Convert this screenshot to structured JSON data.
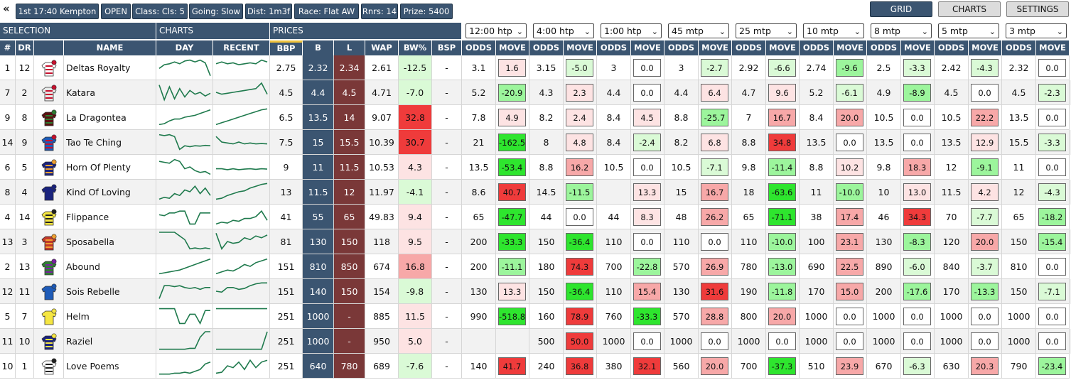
{
  "topbar": {
    "chips": [
      "1st 17:40 Kempton",
      "OPEN",
      "Class: Cls: 5",
      "Going: Slow",
      "Dist: 1m3f",
      "Race: Flat AW",
      "Rnrs: 14",
      "Prize: 5400"
    ],
    "views": {
      "grid": "GRID",
      "charts": "CHARTS",
      "settings": "SETTINGS"
    }
  },
  "groups": {
    "selection": "SELECTION",
    "charts": "CHARTS",
    "prices": "PRICES"
  },
  "timepoints": [
    "12:00 htp",
    "4:00 htp",
    "1:00 htp",
    "45 mtp",
    "25 mtp",
    "10 mtp",
    "8 mtp",
    "5 mtp",
    "3 mtp"
  ],
  "columns": {
    "num": "#",
    "dr": "DR",
    "name": "NAME",
    "day": "DAY",
    "recent": "RECENT",
    "bbp": "BBP",
    "b": "B",
    "l": "L",
    "wap": "WAP",
    "bwp": "BW%",
    "bsp": "BSP",
    "odds": "ODDS",
    "move": "MOVE"
  },
  "runners": [
    {
      "num": "1",
      "dr": "12",
      "name": "Deltas Royalty",
      "silk": [
        "#ffffff",
        "#c8102e"
      ],
      "bbp": "2.75",
      "b": "2.32",
      "l": "2.34",
      "wap": "2.61",
      "bwp": "-12.5",
      "bsp": "-",
      "tp": [
        [
          "3.1",
          "1.6"
        ],
        [
          "3.15",
          "-5.0"
        ],
        [
          "3",
          "0.0"
        ],
        [
          "3",
          "-2.7"
        ],
        [
          "2.92",
          "-6.6"
        ],
        [
          "2.74",
          "-9.6"
        ],
        [
          "2.5",
          "-3.3"
        ],
        [
          "2.42",
          "-4.3"
        ],
        [
          "2.32",
          "0.0"
        ]
      ],
      "day": [
        0.55,
        0.35,
        0.3,
        0.2,
        0.3,
        0.15,
        0.1,
        0.2,
        0.1,
        0.25,
        0.95
      ],
      "recent": [
        0.3,
        0.2,
        0.3,
        0.25,
        0.35,
        0.3,
        0.25,
        0.3,
        0.1,
        0.2
      ]
    },
    {
      "num": "7",
      "dr": "2",
      "name": "Katara",
      "silk": [
        "#e6e6e6",
        "#c8102e"
      ],
      "bbp": "4.5",
      "b": "4.4",
      "l": "4.5",
      "wap": "4.71",
      "bwp": "-7.0",
      "bsp": "-",
      "tp": [
        [
          "5.2",
          "-20.9"
        ],
        [
          "4.3",
          "2.3"
        ],
        [
          "4.4",
          "0.0"
        ],
        [
          "4.4",
          "6.4"
        ],
        [
          "4.7",
          "9.6"
        ],
        [
          "5.2",
          "-6.1"
        ],
        [
          "4.9",
          "-8.9"
        ],
        [
          "4.5",
          "0.0"
        ],
        [
          "4.5",
          "-2.3"
        ]
      ],
      "day": [
        0.1,
        0.9,
        0.2,
        0.85,
        0.3,
        0.75,
        0.4,
        0.6,
        0.5,
        0.7,
        0.55
      ],
      "recent": [
        0.5,
        0.6,
        0.55,
        0.5,
        0.45,
        0.4,
        0.35,
        0.3,
        0.0,
        0.6
      ]
    },
    {
      "num": "9",
      "dr": "8",
      "name": "La Dragontea",
      "silk": [
        "#5a1010",
        "#2e7d32"
      ],
      "bbp": "6.5",
      "b": "13.5",
      "l": "14",
      "wap": "9.07",
      "bwp": "32.8",
      "bsp": "-",
      "tp": [
        [
          "7.8",
          "4.9"
        ],
        [
          "8.2",
          "2.4"
        ],
        [
          "8.4",
          "4.5"
        ],
        [
          "8.8",
          "-25.7"
        ],
        [
          "7",
          "16.7"
        ],
        [
          "8.4",
          "20.0"
        ],
        [
          "10.5",
          "0.0"
        ],
        [
          "10.5",
          "22.2"
        ],
        [
          "13.5",
          "0.0"
        ]
      ],
      "day": [
        0.9,
        0.85,
        0.7,
        0.6,
        0.6,
        0.5,
        0.45,
        0.4,
        0.3,
        0.2,
        0.1
      ],
      "recent": [
        0.9,
        0.8,
        0.7,
        0.6,
        0.5,
        0.4,
        0.3,
        0.2,
        0.1,
        0.05
      ]
    },
    {
      "num": "14",
      "dr": "9",
      "name": "Tao Te Ching",
      "silk": [
        "#1e5bb8",
        "#c8102e"
      ],
      "bbp": "7.5",
      "b": "15",
      "l": "15.5",
      "wap": "10.39",
      "bwp": "30.7",
      "bsp": "-",
      "tp": [
        [
          "21",
          "-162.5"
        ],
        [
          "8",
          "4.8"
        ],
        [
          "8.4",
          "-2.4"
        ],
        [
          "8.2",
          "6.8"
        ],
        [
          "8.8",
          "34.8"
        ],
        [
          "13.5",
          "0.0"
        ],
        [
          "13.5",
          "0.0"
        ],
        [
          "13.5",
          "12.9"
        ],
        [
          "15.5",
          "-3.3"
        ]
      ],
      "day": [
        0.1,
        0.15,
        0.1,
        0.2,
        0.9,
        0.7,
        0.75,
        0.7,
        0.72,
        0.68,
        0.7
      ],
      "recent": [
        0.2,
        0.5,
        0.55,
        0.6,
        0.5,
        0.6,
        0.55,
        0.6,
        0.58,
        0.6
      ]
    },
    {
      "num": "6",
      "dr": "5",
      "name": "Horn Of Plenty",
      "silk": [
        "#1a237e",
        "#f0a030"
      ],
      "bbp": "9",
      "b": "11",
      "l": "11.5",
      "wap": "10.53",
      "bwp": "4.3",
      "bsp": "-",
      "tp": [
        [
          "13.5",
          "-53.4"
        ],
        [
          "8.8",
          "16.2"
        ],
        [
          "10.5",
          "0.0"
        ],
        [
          "10.5",
          "-7.1"
        ],
        [
          "9.8",
          "-11.4"
        ],
        [
          "8.8",
          "10.2"
        ],
        [
          "9.8",
          "18.3"
        ],
        [
          "12",
          "-9.1"
        ],
        [
          "11",
          "0.0"
        ]
      ],
      "day": [
        0.2,
        0.25,
        0.3,
        0.1,
        0.2,
        0.6,
        0.5,
        0.7,
        0.8,
        0.75,
        0.9
      ],
      "recent": [
        0.6,
        0.6,
        0.65,
        0.6,
        0.65,
        0.62,
        0.6,
        0.63,
        0.6,
        0.62
      ]
    },
    {
      "num": "8",
      "dr": "4",
      "name": "Kind Of Loving",
      "silk": [
        "#1a237e",
        "#1a237e"
      ],
      "bbp": "13",
      "b": "11.5",
      "l": "12",
      "wap": "11.97",
      "bwp": "-4.1",
      "bsp": "-",
      "tp": [
        [
          "8.6",
          "40.7"
        ],
        [
          "14.5",
          "-11.5"
        ],
        [
          "",
          "13.3"
        ],
        [
          "15",
          "16.7"
        ],
        [
          "18",
          "-63.6"
        ],
        [
          "11",
          "-10.0"
        ],
        [
          "10",
          "13.0"
        ],
        [
          "11.5",
          "4.2"
        ],
        [
          "12",
          "-4.3"
        ]
      ],
      "day": [
        0.9,
        0.8,
        0.85,
        0.6,
        0.7,
        0.4,
        0.5,
        0.2,
        0.6,
        0.3,
        0.7
      ],
      "recent": [
        0.9,
        0.85,
        0.7,
        0.6,
        0.5,
        0.45,
        0.3,
        0.2,
        0.1,
        0.05
      ]
    },
    {
      "num": "4",
      "dr": "14",
      "name": "Flippance",
      "silk": [
        "#f5e642",
        "#222222"
      ],
      "bbp": "41",
      "b": "55",
      "l": "65",
      "wap": "49.83",
      "bwp": "9.4",
      "bsp": "-",
      "tp": [
        [
          "65",
          "-47.7"
        ],
        [
          "44",
          "0.0"
        ],
        [
          "44",
          "8.3"
        ],
        [
          "48",
          "26.2"
        ],
        [
          "65",
          "-71.1"
        ],
        [
          "38",
          "17.4"
        ],
        [
          "46",
          "34.3"
        ],
        [
          "70",
          "-7.7"
        ],
        [
          "65",
          "-18.2"
        ]
      ],
      "day": [
        0.4,
        0.45,
        0.3,
        0.3,
        0.2,
        0.2,
        0.9,
        0.9,
        0.3,
        0.3,
        0.3
      ],
      "recent": [
        0.9,
        0.8,
        0.85,
        0.7,
        0.75,
        0.6,
        0.6,
        0.5,
        0.2,
        0.7
      ]
    },
    {
      "num": "13",
      "dr": "3",
      "name": "Sposabella",
      "silk": [
        "#c0392b",
        "#f0a030"
      ],
      "bbp": "81",
      "b": "130",
      "l": "150",
      "wap": "118",
      "bwp": "9.5",
      "bsp": "-",
      "tp": [
        [
          "200",
          "-33.3"
        ],
        [
          "150",
          "-36.4"
        ],
        [
          "110",
          "0.0"
        ],
        [
          "110",
          "0.0"
        ],
        [
          "110",
          "-10.0"
        ],
        [
          "100",
          "23.1"
        ],
        [
          "130",
          "-8.3"
        ],
        [
          "120",
          "20.0"
        ],
        [
          "150",
          "-15.4"
        ]
      ],
      "day": [
        0.0,
        0.0,
        0.0,
        0.0,
        0.2,
        0.4,
        0.9,
        0.85,
        0.9,
        0.85,
        0.9
      ],
      "recent": [
        0.05,
        0.9,
        0.5,
        0.6,
        0.55,
        0.3,
        0.4,
        0.2,
        0.3,
        0.15
      ]
    },
    {
      "num": "2",
      "dr": "13",
      "name": "Abound",
      "silk": [
        "#2e7d32",
        "#7b1fa2"
      ],
      "bbp": "151",
      "b": "810",
      "l": "850",
      "wap": "674",
      "bwp": "16.8",
      "bsp": "-",
      "tp": [
        [
          "200",
          "-11.1"
        ],
        [
          "180",
          "74.3"
        ],
        [
          "700",
          "-22.8"
        ],
        [
          "570",
          "26.9"
        ],
        [
          "780",
          "-13.0"
        ],
        [
          "690",
          "22.5"
        ],
        [
          "890",
          "-6.0"
        ],
        [
          "840",
          "-3.7"
        ],
        [
          "810",
          "0.0"
        ]
      ],
      "day": [
        0.9,
        0.85,
        0.8,
        0.75,
        0.7,
        0.6,
        0.5,
        0.4,
        0.3,
        0.2,
        0.1
      ],
      "recent": [
        0.9,
        0.8,
        0.7,
        0.75,
        0.6,
        0.4,
        0.5,
        0.3,
        0.2,
        0.1
      ]
    },
    {
      "num": "12",
      "dr": "11",
      "name": "Sois Rebelle",
      "silk": [
        "#1e5bb8",
        "#1e5bb8"
      ],
      "bbp": "151",
      "b": "140",
      "l": "150",
      "wap": "154",
      "bwp": "-9.8",
      "bsp": "-",
      "tp": [
        [
          "130",
          "13.3"
        ],
        [
          "150",
          "-36.4"
        ],
        [
          "110",
          "15.4"
        ],
        [
          "130",
          "31.6"
        ],
        [
          "190",
          "-11.8"
        ],
        [
          "170",
          "15.0"
        ],
        [
          "200",
          "-17.6"
        ],
        [
          "170",
          "-13.3"
        ],
        [
          "150",
          "-7.1"
        ]
      ],
      "day": [
        0.9,
        0.2,
        0.2,
        0.25,
        0.2,
        0.3,
        0.35,
        0.3,
        0.4,
        0.3,
        0.3
      ],
      "recent": [
        0.5,
        0.55,
        0.3,
        0.3,
        0.4,
        0.35,
        0.2,
        0.1,
        0.05,
        0.05
      ]
    },
    {
      "num": "5",
      "dr": "7",
      "name": "Helm",
      "silk": [
        "#f5e642",
        "#f5e642"
      ],
      "bbp": "251",
      "b": "1000",
      "l": "-",
      "wap": "885",
      "bwp": "11.5",
      "bsp": "-",
      "tp": [
        [
          "990",
          "-518.8"
        ],
        [
          "160",
          "78.9"
        ],
        [
          "760",
          "-33.3"
        ],
        [
          "570",
          "28.8"
        ],
        [
          "800",
          "20.0"
        ],
        [
          "1000",
          "0.0"
        ],
        [
          "1000",
          "0.0"
        ],
        [
          "1000",
          "0.0"
        ],
        [
          "1000",
          "0.0"
        ]
      ],
      "day": [
        0.1,
        0.1,
        0.1,
        0.1,
        0.9,
        0.9,
        0.4,
        0.4,
        0.9,
        0.2,
        0.2
      ],
      "recent": [
        0.1,
        0.1,
        0.1,
        0.1,
        0.1,
        0.1,
        0.1,
        0.1,
        0.1,
        0.1
      ]
    },
    {
      "num": "11",
      "dr": "10",
      "name": "Raziel",
      "silk": [
        "#1a237e",
        "#f5e642"
      ],
      "bbp": "251",
      "b": "1000",
      "l": "-",
      "wap": "950",
      "bwp": "5.0",
      "bsp": "-",
      "tp": [
        [
          "",
          ""
        ],
        [
          "500",
          "50.0"
        ],
        [
          "1000",
          "0.0"
        ],
        [
          "1000",
          "0.0"
        ],
        [
          "1000",
          "0.0"
        ],
        [
          "1000",
          "0.0"
        ],
        [
          "1000",
          "0.0"
        ],
        [
          "1000",
          "0.0"
        ],
        [
          "1000",
          "0.0"
        ]
      ],
      "day": [
        0.95,
        0.95,
        0.95,
        0.95,
        0.95,
        0.95,
        0.9,
        0.9,
        0.3,
        0.0,
        0.0
      ],
      "recent": [
        0.95,
        0.95,
        0.95,
        0.95,
        0.95,
        0.95,
        0.95,
        0.95,
        0.95,
        0.0
      ]
    },
    {
      "num": "10",
      "dr": "1",
      "name": "Love Poems",
      "silk": [
        "#ffffff",
        "#222222"
      ],
      "bbp": "251",
      "b": "640",
      "l": "780",
      "wap": "689",
      "bwp": "-7.6",
      "bsp": "-",
      "tp": [
        [
          "140",
          "41.7"
        ],
        [
          "240",
          "36.8"
        ],
        [
          "380",
          "32.1"
        ],
        [
          "560",
          "20.0"
        ],
        [
          "700",
          "-37.3"
        ],
        [
          "510",
          "23.9"
        ],
        [
          "670",
          "-6.3"
        ],
        [
          "630",
          "20.3"
        ],
        [
          "790",
          "-23.4"
        ]
      ],
      "day": [
        0.95,
        0.95,
        0.95,
        0.9,
        0.9,
        0.85,
        0.9,
        0.8,
        0.7,
        0.4,
        0.3
      ],
      "recent": [
        0.9,
        0.85,
        0.5,
        0.6,
        0.3,
        0.7,
        0.2,
        0.6,
        0.3,
        0.2
      ]
    }
  ],
  "colors": {
    "header": "#3b5571",
    "b_col": "#3b5571",
    "l_col": "#7a3838",
    "pos_strong": "#ef3b3b",
    "pos_mid": "#f7a8a8",
    "pos_light": "#fde3e3",
    "neg_strong": "#2ee52e",
    "neg_mid": "#9cf59c",
    "neg_light": "#dafad6",
    "spark": "#1f7a4d",
    "accent": "#f0c33c"
  }
}
